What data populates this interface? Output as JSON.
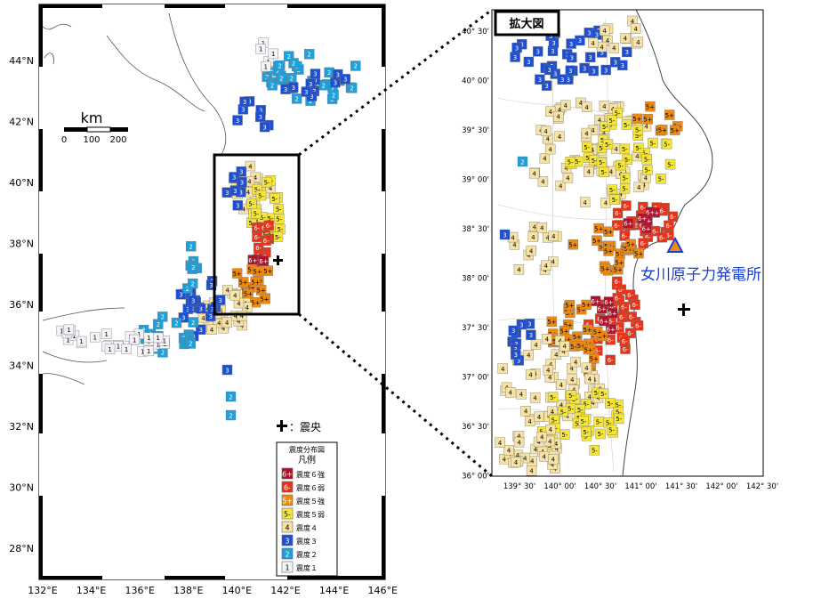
{
  "left_map": {
    "lat_labels": [
      "44°N",
      "42°N",
      "40°N",
      "38°N",
      "36°N",
      "34°N",
      "32°N",
      "30°N",
      "28°N"
    ],
    "lon_labels": [
      "132°E",
      "134°E",
      "136°E",
      "138°E",
      "140°E",
      "142°E",
      "144°E",
      "146°E"
    ],
    "scalebar": {
      "unit": "km",
      "ticks": [
        "0",
        "100",
        "200"
      ]
    },
    "epicenter_label": "：震央",
    "legend": {
      "title": "震度分布図",
      "subtitle": "凡例",
      "items": [
        {
          "badge": "6+",
          "label": "震度６強",
          "color": "#b0102a"
        },
        {
          "badge": "6-",
          "label": "震度６弱",
          "color": "#e8331b"
        },
        {
          "badge": "5+",
          "label": "震度５強",
          "color": "#ee8a12"
        },
        {
          "badge": "5-",
          "label": "震度５弱",
          "color": "#f7e63a"
        },
        {
          "badge": "4",
          "label": "震度４",
          "color": "#f6e3a5"
        },
        {
          "badge": "3",
          "label": "震度３",
          "color": "#1f4fd0"
        },
        {
          "badge": "2",
          "label": "震度２",
          "color": "#1da0dc"
        },
        {
          "badge": "1",
          "label": "震度１",
          "color": "#f4f4f8"
        }
      ]
    }
  },
  "right_map": {
    "title": "拡大図",
    "lat_labels": [
      "40° 30'",
      "40° 00'",
      "39° 30'",
      "39° 00'",
      "38° 30'",
      "38° 00'",
      "37° 30'",
      "37° 00'",
      "36° 30'",
      "36° 00'"
    ],
    "lon_labels": [
      "139° 30'",
      "140° 00'",
      "140° 30'",
      "141° 00'",
      "141° 30'",
      "142° 00'",
      "142° 30'"
    ],
    "plant_label": "女川原子力発電所",
    "plant_color": "#1a3fd0"
  },
  "colors": {
    "six_plus": "#b0102a",
    "six_minus": "#e8331b",
    "five_plus": "#ee8a12",
    "five_minus": "#f7e63a",
    "four": "#f6e3a5",
    "three": "#1f4fd0",
    "two": "#1da0dc",
    "one": "#f4f4f8"
  }
}
